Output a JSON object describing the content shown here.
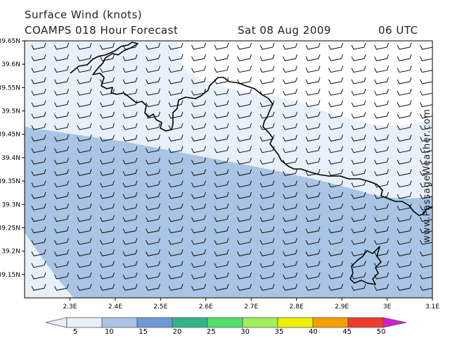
{
  "title": {
    "line1": "Surface Wind (knots)",
    "model": "COAMPS 018 Hour Forecast",
    "date": "Sat 08 Aug 2009",
    "time": "06 UTC"
  },
  "credit": "www.PassageWeather.com",
  "map": {
    "lon_range": [
      2.2,
      3.1
    ],
    "lat_range": [
      39.1,
      39.65
    ],
    "lon_ticks": [
      "2.3E",
      "2.4E",
      "2.5E",
      "2.6E",
      "2.7E",
      "2.8E",
      "2.9E",
      "3E",
      "3.1E"
    ],
    "lon_tick_values": [
      2.3,
      2.4,
      2.5,
      2.6,
      2.7,
      2.8,
      2.9,
      3.0,
      3.1
    ],
    "lat_ticks": [
      "39.15N",
      "39.2N",
      "39.25N",
      "39.3N",
      "39.35N",
      "39.4N",
      "39.45N",
      "39.5N",
      "39.55N",
      "39.6N",
      "39.65N"
    ],
    "lat_tick_values": [
      39.15,
      39.2,
      39.25,
      39.3,
      39.35,
      39.4,
      39.45,
      39.5,
      39.55,
      39.6,
      39.65
    ],
    "wind_direction": "westerly barbs, ~5-15 knots"
  },
  "legend": {
    "labels": [
      "5",
      "10",
      "15",
      "20",
      "25",
      "30",
      "35",
      "40",
      "45",
      "50"
    ],
    "colors": [
      "#e8f0fa",
      "#a9c4e4",
      "#6f98d6",
      "#2fb58a",
      "#4fe06a",
      "#9ff05a",
      "#f0f000",
      "#f5a000",
      "#f03a30",
      "#c00000",
      "#d020d0"
    ]
  }
}
